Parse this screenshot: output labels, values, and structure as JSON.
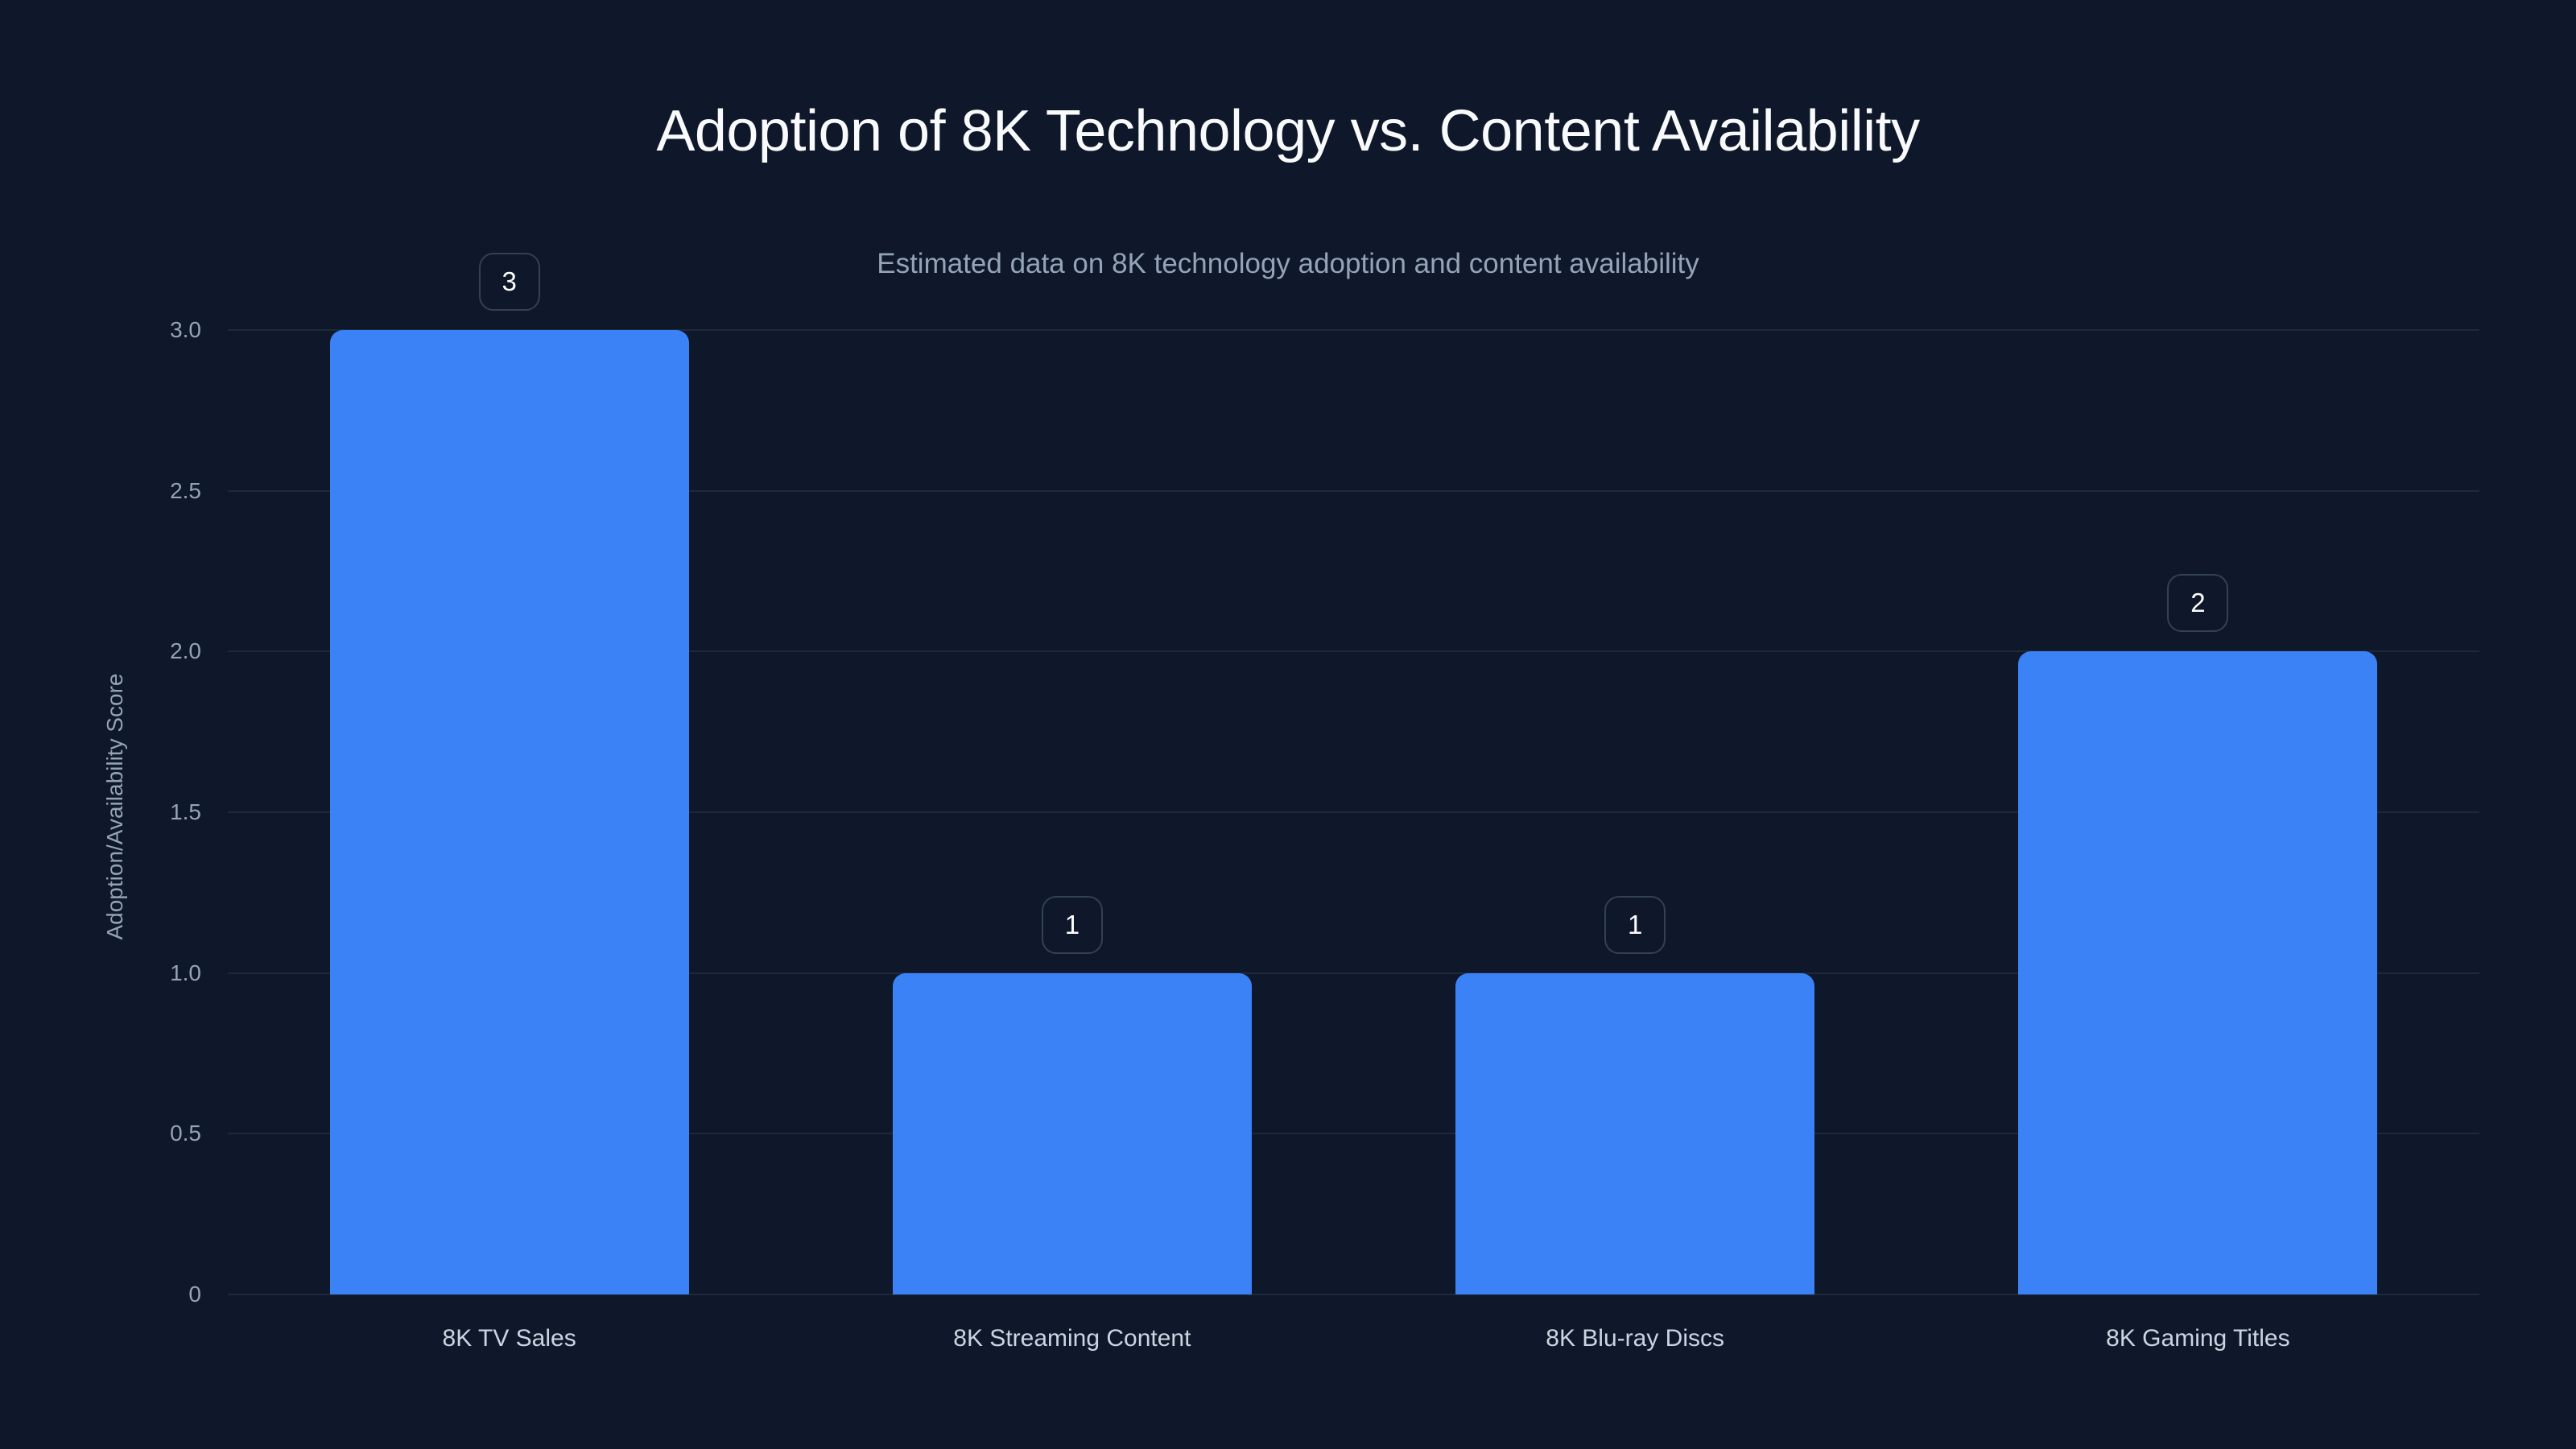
{
  "header": {
    "title": "Adoption of 8K Technology vs. Content Availability",
    "subtitle": "Estimated data on 8K technology adoption and content availability"
  },
  "axes": {
    "ylabel": "Adoption/Availability Score",
    "yticks": [
      "0",
      "0.5",
      "1.0",
      "1.5",
      "2.0",
      "2.5",
      "3.0"
    ]
  },
  "colors": {
    "background": "#0f172a",
    "bar": "#3b82f6",
    "grid": "#1e293b",
    "label_border": "#334155"
  },
  "chart_data": {
    "type": "bar",
    "title": "Adoption of 8K Technology vs. Content Availability",
    "subtitle": "Estimated data on 8K technology adoption and content availability",
    "xlabel": "",
    "ylabel": "Adoption/Availability Score",
    "categories": [
      "8K TV Sales",
      "8K Streaming Content",
      "8K Blu-ray Discs",
      "8K Gaming Titles"
    ],
    "values": [
      3,
      1,
      1,
      2
    ],
    "data_labels": [
      "3",
      "1",
      "1",
      "2"
    ],
    "ylim": [
      0,
      3
    ],
    "yticks": [
      0,
      0.5,
      1.0,
      1.5,
      2.0,
      2.5,
      3.0
    ],
    "grid": true,
    "legend": null
  }
}
